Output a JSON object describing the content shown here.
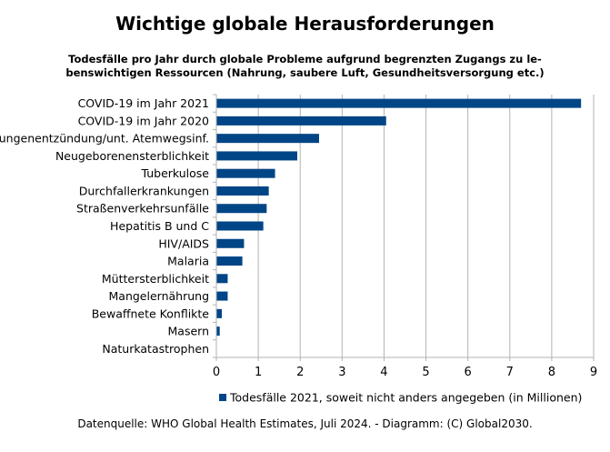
{
  "chart_data": {
    "type": "bar",
    "orientation": "horizontal",
    "title": "Wichtige globale Herausforderungen",
    "subtitle_lines": [
      "Todesfälle pro Jahr durch globale Probleme aufgrund begrenzten Zugangs zu le-",
      "benswichtigen Ressourcen (Nahrung, saubere Luft, Gesundheitsversorgung etc.)"
    ],
    "categories": [
      "COVID-19 im Jahr 2021",
      "COVID-19 im Jahr 2020",
      "Lungenentzündung/unt. Atemwegsinf.",
      "Neugeborenensterblichkeit",
      "Tuberkulose",
      "Durchfallerkrankungen",
      "Straßenverkehrsunfälle",
      "Hepatitis B und C",
      "HIV/AIDS",
      "Malaria",
      "Müttersterblichkeit",
      "Mangelernährung",
      "Bewaffnete Konflikte",
      "Masern",
      "Naturkatastrophen"
    ],
    "series": [
      {
        "name": "Todesfälle 2021, soweit nicht anders angegeben (in Millionen)",
        "values": [
          8.7,
          4.05,
          2.45,
          1.93,
          1.4,
          1.25,
          1.2,
          1.12,
          0.66,
          0.62,
          0.27,
          0.27,
          0.13,
          0.08,
          0.01
        ],
        "color": "#004586"
      }
    ],
    "xlim": [
      0,
      9
    ],
    "xticks": [
      "0",
      "1",
      "2",
      "3",
      "4",
      "5",
      "6",
      "7",
      "8",
      "9"
    ],
    "grid": "vertical",
    "legend_position": "bottom"
  },
  "source_note": "Datenquelle: WHO Global Health Estimates, Juli 2024. - Diagramm: (C) Global2030."
}
